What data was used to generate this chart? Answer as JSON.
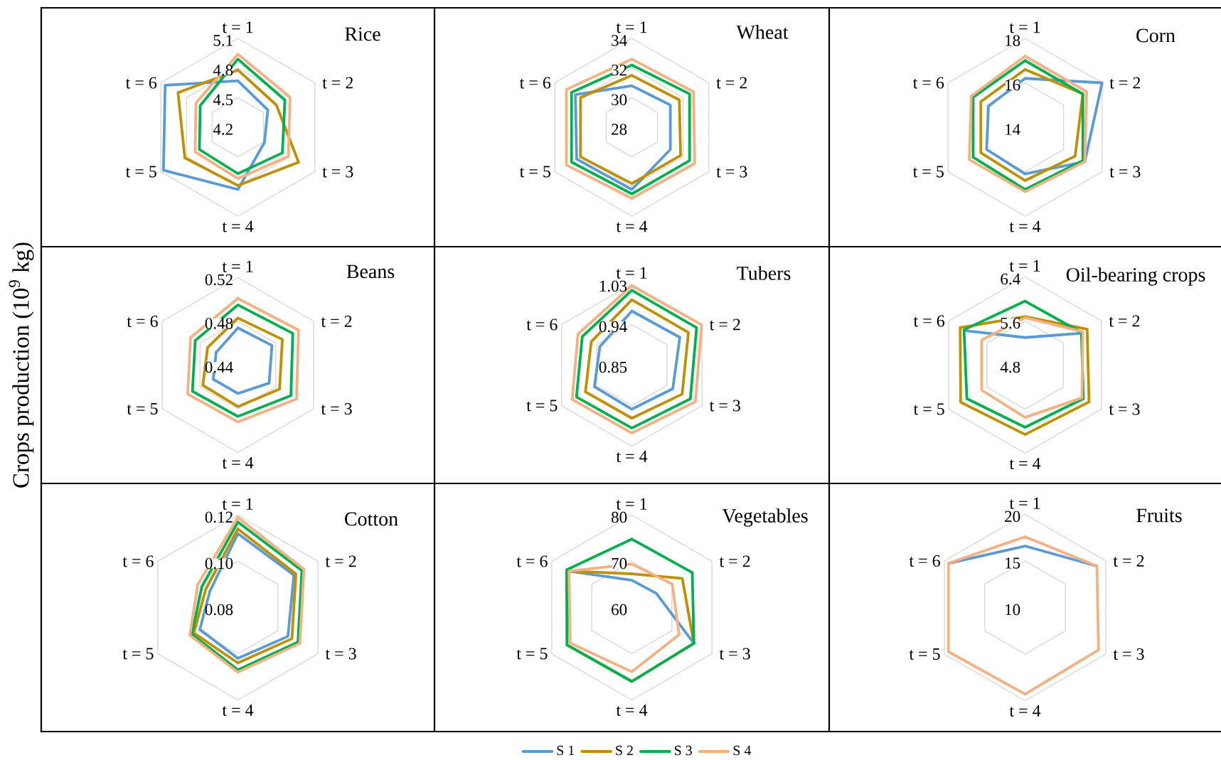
{
  "chart_data": [
    {
      "type": "radar",
      "title": "Rice",
      "categories": [
        "t = 1",
        "t = 2",
        "t = 3",
        "t = 4",
        "t = 5",
        "t = 6"
      ],
      "ylim": [
        4.2,
        5.1
      ],
      "yticks": [
        4.2,
        4.5,
        4.8,
        5.1
      ],
      "grid": true,
      "series": [
        {
          "color": "#5b9bd5",
          "values": [
            4.67,
            4.55,
            4.51,
            4.83,
            5.07,
            5.05
          ]
        },
        {
          "color": "#bf9000",
          "values": [
            4.78,
            4.65,
            4.91,
            4.79,
            4.82,
            4.9
          ]
        },
        {
          "color": "#00b050",
          "values": [
            4.89,
            4.75,
            4.72,
            4.67,
            4.65,
            4.64
          ]
        },
        {
          "color": "#f4b183",
          "values": [
            4.94,
            4.81,
            4.79,
            4.72,
            4.7,
            4.69
          ]
        }
      ]
    },
    {
      "type": "radar",
      "title": "Wheat",
      "categories": [
        "t = 1",
        "t = 2",
        "t = 3",
        "t = 4",
        "t = 5",
        "t = 6"
      ],
      "ylim": [
        28,
        34
      ],
      "yticks": [
        28,
        30,
        32,
        34
      ],
      "grid": true,
      "series": [
        {
          "color": "#5b9bd5",
          "values": [
            30.8,
            31.0,
            31.0,
            32.2,
            32.3,
            32.4
          ]
        },
        {
          "color": "#bf9000",
          "values": [
            31.5,
            31.7,
            31.8,
            31.8,
            32.0,
            32.0
          ]
        },
        {
          "color": "#00b050",
          "values": [
            32.2,
            32.5,
            32.5,
            32.5,
            32.7,
            32.7
          ]
        },
        {
          "color": "#f4b183",
          "values": [
            32.6,
            32.8,
            32.9,
            32.8,
            33.1,
            33.1
          ]
        }
      ]
    },
    {
      "type": "radar",
      "title": "Corn",
      "categories": [
        "t = 1",
        "t = 2",
        "t = 3",
        "t = 4",
        "t = 5",
        "t = 6"
      ],
      "ylim": [
        14,
        18
      ],
      "yticks": [
        14,
        16,
        18
      ],
      "grid": true,
      "series": [
        {
          "color": "#5b9bd5",
          "values": [
            16.2,
            18.0,
            17.1,
            16.1,
            16.0,
            15.9
          ]
        },
        {
          "color": "#bf9000",
          "values": [
            16.6,
            17.0,
            16.6,
            16.4,
            16.3,
            16.3
          ]
        },
        {
          "color": "#00b050",
          "values": [
            17.0,
            17.0,
            17.0,
            16.8,
            16.7,
            16.7
          ]
        },
        {
          "color": "#f4b183",
          "values": [
            17.2,
            17.2,
            17.1,
            16.9,
            16.9,
            16.8
          ]
        }
      ]
    },
    {
      "type": "radar",
      "title": "Beans",
      "ylabel": "Crops production (10$^{9}$ kg)",
      "categories": [
        "t = 1",
        "t = 2",
        "t = 3",
        "t = 4",
        "t = 5",
        "t = 6"
      ],
      "ylim": [
        0.44,
        0.52
      ],
      "yticks": [
        0.44,
        0.48,
        0.52
      ],
      "grid": true,
      "series": [
        {
          "color": "#5b9bd5",
          "values": [
            0.474,
            0.476,
            0.473,
            0.466,
            0.466,
            0.463
          ]
        },
        {
          "color": "#bf9000",
          "values": [
            0.483,
            0.487,
            0.484,
            0.478,
            0.477,
            0.472
          ]
        },
        {
          "color": "#00b050",
          "values": [
            0.495,
            0.498,
            0.496,
            0.487,
            0.488,
            0.485
          ]
        },
        {
          "color": "#f4b183",
          "values": [
            0.501,
            0.504,
            0.502,
            0.492,
            0.493,
            0.49
          ]
        }
      ]
    },
    {
      "type": "radar",
      "title": "Tubers",
      "categories": [
        "t = 1",
        "t = 2",
        "t = 3",
        "t = 4",
        "t = 5",
        "t = 6"
      ],
      "ylim": [
        0.85,
        1.03
      ],
      "yticks": [
        0.85,
        0.94,
        1.03
      ],
      "grid": true,
      "series": [
        {
          "color": "#5b9bd5",
          "values": [
            0.97,
            0.973,
            0.955,
            0.948,
            0.946,
            0.932
          ]
        },
        {
          "color": "#bf9000",
          "values": [
            0.995,
            0.995,
            0.979,
            0.968,
            0.969,
            0.954
          ]
        },
        {
          "color": "#00b050",
          "values": [
            1.016,
            1.016,
            1.0,
            0.99,
            0.992,
            0.977
          ]
        },
        {
          "color": "#f4b183",
          "values": [
            1.026,
            1.029,
            1.013,
            1.001,
            1.003,
            0.988
          ]
        }
      ]
    },
    {
      "type": "radar",
      "title": "Oil-bearing crops",
      "categories": [
        "t = 1",
        "t = 2",
        "t = 3",
        "t = 4",
        "t = 5",
        "t = 6"
      ],
      "ylim": [
        4.8,
        6.4
      ],
      "yticks": [
        4.8,
        5.6,
        6.4
      ],
      "grid": true,
      "series": [
        {
          "color": "#5b9bd5",
          "values": [
            5.3,
            5.95,
            null,
            null,
            null,
            6.05
          ]
        },
        {
          "color": "#bf9000",
          "values": [
            5.68,
            6.1,
            6.14,
            6.06,
            6.15,
            6.16
          ]
        },
        {
          "color": "#00b050",
          "values": [
            5.96,
            5.98,
            6.02,
            5.93,
            6.02,
            6.08
          ]
        },
        {
          "color": "#f4b183",
          "values": [
            5.66,
            6.01,
            5.99,
            5.75,
            5.71,
            5.71
          ]
        }
      ]
    },
    {
      "type": "radar",
      "title": "Cotton",
      "categories": [
        "t = 1",
        "t = 2",
        "t = 3",
        "t = 4",
        "t = 5",
        "t = 6"
      ],
      "ylim": [
        0.08,
        0.12
      ],
      "yticks": [
        0.08,
        {
          "value": 0.1,
          "label": "0.10"
        },
        0.12
      ],
      "grid": true,
      "series": [
        {
          "color": "#5b9bd5",
          "values": [
            0.112,
            0.108,
            0.105,
            0.102,
            0.099,
            0.094
          ]
        },
        {
          "color": "#bf9000",
          "values": [
            0.114,
            0.109,
            0.107,
            0.104,
            0.102,
            0.096
          ]
        },
        {
          "color": "#00b050",
          "values": [
            0.117,
            0.112,
            0.11,
            0.107,
            0.103,
            0.098
          ]
        },
        {
          "color": "#f4b183",
          "values": [
            0.119,
            0.113,
            0.111,
            0.108,
            0.104,
            0.1
          ]
        }
      ]
    },
    {
      "type": "radar",
      "title": "Vegetables",
      "categories": [
        "t = 1",
        "t = 2",
        "t = 3",
        "t = 4",
        "t = 5",
        "t = 6"
      ],
      "ylim": [
        60,
        80
      ],
      "yticks": [
        60,
        70,
        80
      ],
      "grid": true,
      "legend": "bottom",
      "series": [
        {
          "name": "S 1",
          "color": "#5b9bd5",
          "values": [
            65.9,
            66.1,
            75.5,
            null,
            null,
            75.7
          ]
        },
        {
          "name": "S 2",
          "color": "#bf9000",
          "values": [
            67.3,
            72.6,
            75.5,
            76.0,
            76.2,
            75.8
          ]
        },
        {
          "name": "S 3",
          "color": "#00b050",
          "values": [
            74.8,
            75.1,
            75.5,
            76.0,
            76.2,
            76.3
          ]
        },
        {
          "name": "S 4",
          "color": "#f4b183",
          "values": [
            69.4,
            70.1,
            71.8,
            73.9,
            75.4,
            75.7
          ]
        }
      ]
    },
    {
      "type": "radar",
      "title": "Fruits",
      "categories": [
        "t = 1",
        "t = 2",
        "t = 3",
        "t = 4",
        "t = 5",
        "t = 6"
      ],
      "ylim": [
        10,
        20
      ],
      "yticks": [
        10,
        15,
        20
      ],
      "grid": true,
      "series": [
        {
          "color": "#5b9bd5",
          "values": [
            16.6,
            18.9,
            null,
            null,
            null,
            19.5
          ]
        },
        {
          "color": "#f4b183",
          "values": [
            17.6,
            18.9,
            19.1,
            19.3,
            19.5,
            19.5
          ]
        }
      ]
    }
  ]
}
